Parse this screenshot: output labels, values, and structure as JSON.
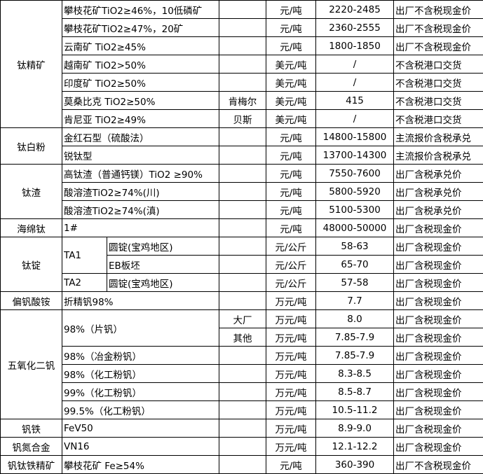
{
  "groups": [
    {
      "category": "钛精矿",
      "items": [
        {
          "spec": "攀枝花矿TiO2≥46%，10低磷矿",
          "rows": [
            {
              "note": "",
              "unit": "元/吨",
              "price": "2220-2485",
              "remark": "出厂不含税现金价"
            }
          ]
        },
        {
          "spec": "攀枝花矿TiO2≥47%，20矿",
          "rows": [
            {
              "note": "",
              "unit": "元/吨",
              "price": "2360-2555",
              "remark": "出厂不含税现金价"
            }
          ]
        },
        {
          "spec": "云南矿 TiO2≥45%",
          "rows": [
            {
              "note": "",
              "unit": "元/吨",
              "price": "1800-1850",
              "remark": "出厂不含税现金价"
            }
          ]
        },
        {
          "spec": "越南矿 TiO2>50%",
          "rows": [
            {
              "note": "",
              "unit": "美元/吨",
              "price": "/",
              "remark": "不含税港口交货"
            }
          ]
        },
        {
          "spec": "印度矿 TiO2≥50%",
          "rows": [
            {
              "note": "",
              "unit": "美元/吨",
              "price": "/",
              "remark": "不含税港口交货"
            }
          ]
        },
        {
          "spec": "莫桑比克 TiO2≥50%",
          "rows": [
            {
              "note": "肯梅尔",
              "unit": "美元/吨",
              "price": "415",
              "remark": "不含税港口交货"
            }
          ]
        },
        {
          "spec": "肯尼亚 TiO2≥49%",
          "rows": [
            {
              "note": "贝斯",
              "unit": "美元/吨",
              "price": "/",
              "remark": "不含税港口交货"
            }
          ]
        }
      ]
    },
    {
      "category": "钛白粉",
      "items": [
        {
          "spec": "金红石型（硫酸法）",
          "rows": [
            {
              "note": "",
              "unit": "元/吨",
              "price": "14800-15800",
              "remark": "主流报价含税承兑"
            }
          ]
        },
        {
          "spec": "锐钛型",
          "rows": [
            {
              "note": "",
              "unit": "元/吨",
              "price": "13700-14300",
              "remark": "主流报价含税承兑"
            }
          ]
        }
      ]
    },
    {
      "category": "钛渣",
      "items": [
        {
          "spec": "高钛渣（普通钙镁）TiO2 ≥90%",
          "rows": [
            {
              "note": "",
              "unit": "元/吨",
              "price": "7550-7600",
              "remark": "出厂含税承兑价"
            }
          ]
        },
        {
          "spec": "酸溶渣TiO2≥74%(川)",
          "rows": [
            {
              "note": "",
              "unit": "元/吨",
              "price": "5800-5920",
              "remark": "出厂含税承兑价"
            }
          ]
        },
        {
          "spec": "酸溶渣TiO2≥74%(滇)",
          "rows": [
            {
              "note": "",
              "unit": "元/吨",
              "price": "5100-5300",
              "remark": "出厂含税承兑价"
            }
          ]
        }
      ]
    },
    {
      "category": "海绵钛",
      "items": [
        {
          "spec": "1#",
          "rows": [
            {
              "note": "",
              "unit": "元/吨",
              "price": "48000-50000",
              "remark": "出厂含税现金价"
            }
          ]
        }
      ]
    },
    {
      "category": "钛锭",
      "items": [
        {
          "grade": "TA1",
          "rows": [
            {
              "spec": "圆锭(宝鸡地区)",
              "note": "",
              "unit": "元/公斤",
              "price": "58-63",
              "remark": "出厂含税现金价"
            },
            {
              "spec": "EB板坯",
              "note": "",
              "unit": "元/公斤",
              "price": "65-70",
              "remark": "出厂含税现金价"
            }
          ]
        },
        {
          "grade": "TA2",
          "rows": [
            {
              "spec": "圆锭(宝鸡地区)",
              "note": "",
              "unit": "元/公斤",
              "price": "57-58",
              "remark": "出厂含税现金价"
            }
          ]
        }
      ]
    },
    {
      "category": "偏钒酸铵",
      "items": [
        {
          "spec": "折精钒98%",
          "rows": [
            {
              "note": "",
              "unit": "万元/吨",
              "price": "7.7",
              "remark": "出厂含税现金价"
            }
          ]
        }
      ]
    },
    {
      "category": "五氧化二钒",
      "items": [
        {
          "spec": "98%（片钒）",
          "rows": [
            {
              "note": "大厂",
              "unit": "万元/吨",
              "price": "8.0",
              "remark": "出厂含税现金价"
            },
            {
              "note": "其他",
              "unit": "万元/吨",
              "price": "7.85-7.9",
              "remark": "出厂含税现金价"
            }
          ]
        },
        {
          "spec": "98%（冶金粉钒）",
          "rows": [
            {
              "note": "",
              "unit": "万元/吨",
              "price": "7.85-7.9",
              "remark": "出厂含税现金价"
            }
          ]
        },
        {
          "spec": "98%（化工粉钒）",
          "rows": [
            {
              "note": "",
              "unit": "万元/吨",
              "price": "8.3-8.5",
              "remark": "出厂含税现金价"
            }
          ]
        },
        {
          "spec": "99%（化工粉钒）",
          "rows": [
            {
              "note": "",
              "unit": "万元/吨",
              "price": "8.5-8.7",
              "remark": "出厂含税现金价"
            }
          ]
        },
        {
          "spec": "99.5%（化工粉钒）",
          "rows": [
            {
              "note": "",
              "unit": "万元/吨",
              "price": "10.5-11.2",
              "remark": "出厂含税现金价"
            }
          ]
        }
      ]
    },
    {
      "category": "钒铁",
      "items": [
        {
          "spec": "FeV50",
          "rows": [
            {
              "note": "",
              "unit": "万元/吨",
              "price": "8.9-9.0",
              "remark": "出厂含税现金价"
            }
          ]
        }
      ]
    },
    {
      "category": "钒氮合金",
      "items": [
        {
          "spec": "VN16",
          "rows": [
            {
              "note": "",
              "unit": "万元/吨",
              "price": "12.1-12.2",
              "remark": "出厂含税现金价"
            }
          ]
        }
      ]
    },
    {
      "category": "钒钛铁精矿",
      "items": [
        {
          "spec": "攀枝花矿 Fe≥54%",
          "rows": [
            {
              "note": "",
              "unit": "元/吨",
              "price": "360-390",
              "remark": "出厂不含税现金价"
            }
          ]
        }
      ]
    }
  ]
}
